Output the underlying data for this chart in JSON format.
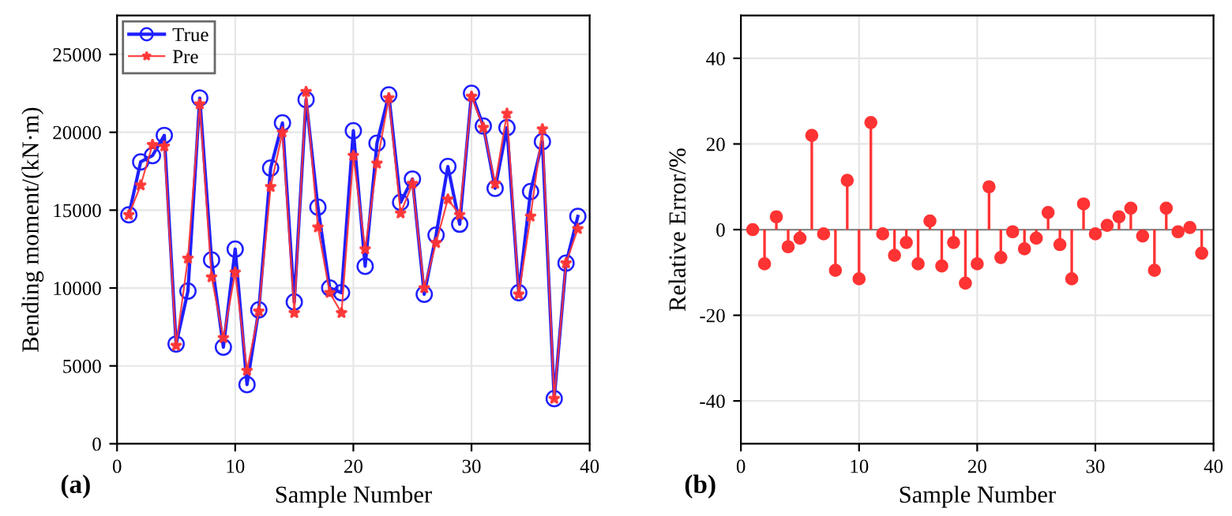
{
  "chart_data": [
    {
      "type": "line",
      "xlabel": "Sample Number",
      "ylabel": "Bending moment/(kN·m)",
      "annotations": [
        "(a)"
      ],
      "x": [
        1,
        2,
        3,
        4,
        5,
        6,
        7,
        8,
        9,
        10,
        11,
        12,
        13,
        14,
        15,
        16,
        17,
        18,
        19,
        20,
        21,
        22,
        23,
        24,
        25,
        26,
        27,
        28,
        29,
        30,
        31,
        32,
        33,
        34,
        35,
        36,
        37,
        38,
        39
      ],
      "series": [
        {
          "name": "True",
          "color": "#1f1fff",
          "marker": "circle",
          "line_style": "solid",
          "values": [
            14700,
            18100,
            18500,
            19800,
            6400,
            9800,
            22200,
            11800,
            6200,
            12500,
            3800,
            8600,
            17700,
            20600,
            9100,
            22100,
            15200,
            10000,
            9700,
            20100,
            11400,
            19300,
            22400,
            15500,
            17000,
            9600,
            13400,
            17800,
            14100,
            22500,
            20400,
            16400,
            20300,
            9700,
            16200,
            19400,
            2900,
            11600,
            14600
          ]
        },
        {
          "name": "Pre",
          "color": "#ff3333",
          "marker": "star",
          "line_style": "solid",
          "values": [
            14700,
            16600,
            19200,
            19100,
            6300,
            11900,
            21800,
            10700,
            6800,
            11000,
            4700,
            8500,
            16500,
            20000,
            8400,
            22600,
            13900,
            9700,
            8400,
            18500,
            12500,
            18000,
            22200,
            14800,
            16700,
            10000,
            12900,
            15700,
            14700,
            22300,
            20300,
            16700,
            21200,
            9600,
            14600,
            20200,
            2900,
            11600,
            13800
          ]
        }
      ],
      "xlim": [
        0,
        40
      ],
      "xticks": [
        0,
        10,
        20,
        30,
        40
      ],
      "ylim": [
        0,
        27500
      ],
      "yticks": [
        0,
        5000,
        10000,
        15000,
        20000,
        25000
      ],
      "grid": true,
      "legend": "top left"
    },
    {
      "type": "lollipop",
      "xlabel": "Sample Number",
      "ylabel": "Relative Error/%",
      "annotations": [
        "(b)"
      ],
      "x": [
        1,
        2,
        3,
        4,
        5,
        6,
        7,
        8,
        9,
        10,
        11,
        12,
        13,
        14,
        15,
        16,
        17,
        18,
        19,
        20,
        21,
        22,
        23,
        24,
        25,
        26,
        27,
        28,
        29,
        30,
        31,
        32,
        33,
        34,
        35,
        36,
        37,
        38,
        39
      ],
      "series": [
        {
          "color": "#ff3333",
          "values": [
            0,
            -8,
            3,
            -4,
            -2,
            22,
            -1,
            -9.5,
            11.5,
            -11.5,
            25,
            -1,
            -6,
            -3,
            -8,
            2,
            -8.5,
            -3,
            -12.5,
            -8,
            10,
            -6.5,
            -0.5,
            -4.5,
            -2,
            4,
            -3.5,
            -11.5,
            6,
            -1,
            1,
            3,
            5,
            -1.5,
            -9.5,
            5,
            -0.5,
            0.5,
            -5.5
          ]
        }
      ],
      "xlim": [
        0,
        40
      ],
      "xticks": [
        0,
        10,
        20,
        30,
        40
      ],
      "ylim": [
        -50,
        50
      ],
      "yticks": [
        -40,
        -20,
        0,
        20,
        40
      ],
      "grid": true,
      "marker": "circle"
    }
  ]
}
